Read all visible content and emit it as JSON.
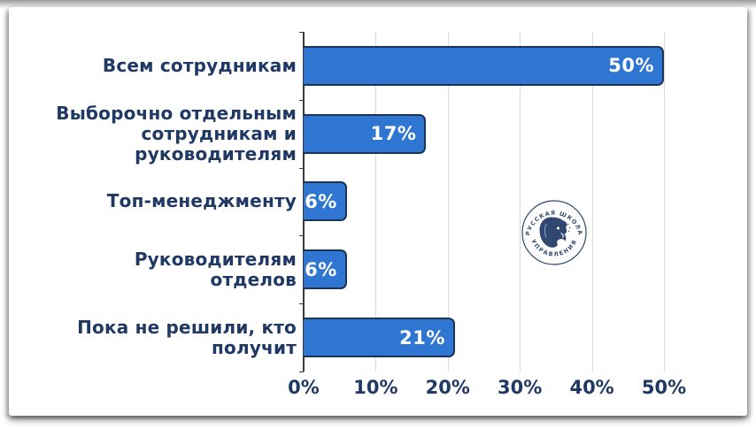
{
  "colors": {
    "navy": "#1f3864",
    "bar_fill": "#2f76d2",
    "bar_border": "#1c3458",
    "gridline": "#d9d9d9",
    "axis_line": "#3a3a3a",
    "value_label": "#ffffff"
  },
  "chart_data": {
    "type": "bar",
    "orientation": "horizontal",
    "title": "",
    "xlabel": "",
    "ylabel": "",
    "xlim": [
      0,
      50
    ],
    "grid": true,
    "categories": [
      "Всем сотрудникам",
      "Выборочно отдельным сотрудникам и руководителям",
      "Топ-менеджменту",
      "Руководителям отделов",
      "Пока не решили, кто получит"
    ],
    "category_lines": [
      [
        "Всем сотрудникам"
      ],
      [
        "Выборочно отдельным",
        "сотрудникам и",
        "руководителям"
      ],
      [
        "Топ-менеджменту"
      ],
      [
        "Руководителям",
        "отделов"
      ],
      [
        "Пока не решили, кто",
        "получит"
      ]
    ],
    "values": [
      50,
      17,
      6,
      6,
      21
    ],
    "value_labels": [
      "50%",
      "17%",
      "6%",
      "6%",
      "21%"
    ],
    "x_ticks": [
      "0%",
      "10%",
      "20%",
      "30%",
      "40%",
      "50%"
    ],
    "x_tick_values": [
      0,
      10,
      20,
      30,
      40,
      50
    ]
  },
  "watermark": {
    "name": "Русская школа управления",
    "text_top": "• РУССКАЯ ШКОЛА •",
    "text_bottom": "УПРАВЛЕНИЯ"
  }
}
